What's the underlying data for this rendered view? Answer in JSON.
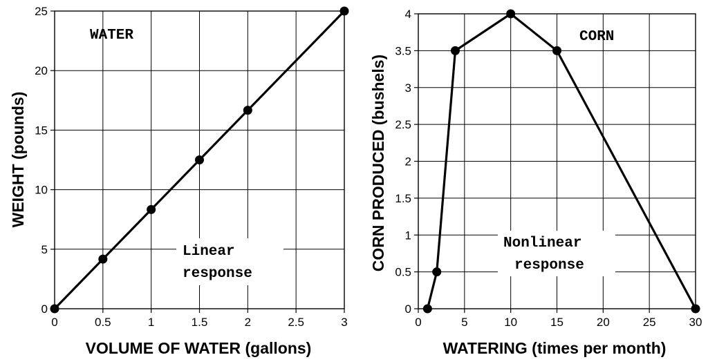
{
  "chart_data": [
    {
      "type": "line",
      "title": "",
      "xlabel": "VOLUME OF WATER (gallons)",
      "ylabel": "WEIGHT (pounds)",
      "xlim": [
        0,
        3
      ],
      "ylim": [
        0,
        25
      ],
      "xticks": [
        "0",
        "0.5",
        "1",
        "1.5",
        "2",
        "2.5",
        "3"
      ],
      "yticks": [
        "0",
        "5",
        "10",
        "15",
        "20",
        "25"
      ],
      "xtick_values": [
        0,
        0.5,
        1,
        1.5,
        2,
        2.5,
        3
      ],
      "ytick_values": [
        0,
        5,
        10,
        15,
        20,
        25
      ],
      "grid": true,
      "x": [
        0,
        0.5,
        1,
        1.5,
        2,
        3
      ],
      "series": [
        {
          "values": [
            0,
            4.17,
            8.33,
            12.5,
            16.67,
            25
          ]
        }
      ],
      "annotations": [
        "WATER",
        "Linear",
        "response"
      ]
    },
    {
      "type": "line",
      "title": "",
      "xlabel": "WATERING (times per month)",
      "ylabel": "CORN PRODUCED  (bushels)",
      "xlim": [
        0,
        30
      ],
      "ylim": [
        0,
        4
      ],
      "xticks": [
        "0",
        "5",
        "10",
        "15",
        "20",
        "25",
        "30"
      ],
      "yticks": [
        "0",
        "0.5",
        "1",
        "1.5",
        "2",
        "2.5",
        "3",
        "3.5",
        "4"
      ],
      "xtick_values": [
        0,
        5,
        10,
        15,
        20,
        25,
        30
      ],
      "ytick_values": [
        0,
        0.5,
        1,
        1.5,
        2,
        2.5,
        3,
        3.5,
        4
      ],
      "grid": true,
      "x": [
        1,
        2,
        4,
        10,
        15,
        30
      ],
      "series": [
        {
          "values": [
            0,
            0.5,
            3.5,
            4,
            3.5,
            0
          ]
        }
      ],
      "annotations": [
        "CORN",
        "Nonlinear",
        "response"
      ]
    }
  ]
}
